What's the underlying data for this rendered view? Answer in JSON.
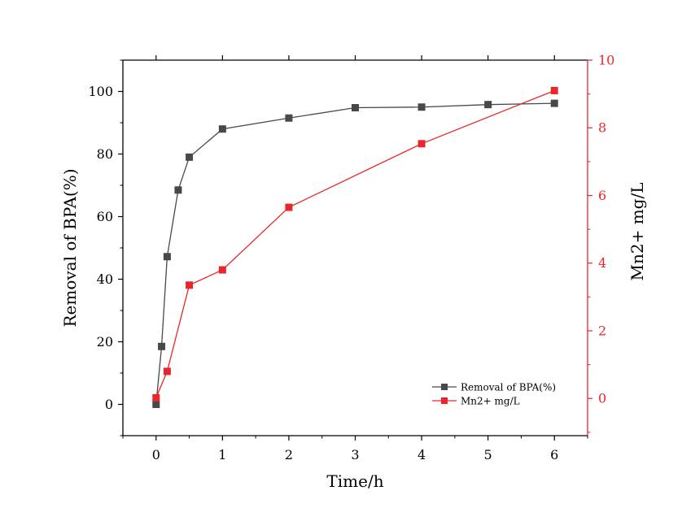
{
  "chart_data": {
    "type": "line",
    "x_axis": {
      "label": "Time/h",
      "range": [
        -0.5,
        6.5
      ],
      "ticks": [
        0,
        1,
        2,
        3,
        4,
        5,
        6
      ],
      "tick_labels": [
        "0",
        "1",
        "2",
        "3",
        "4",
        "5",
        "6"
      ]
    },
    "y_left": {
      "label": "Removal of BPA(%)",
      "range": [
        -10,
        110
      ],
      "ticks": [
        0,
        20,
        40,
        60,
        80,
        100
      ],
      "tick_labels": [
        "0",
        "20",
        "40",
        "60",
        "80",
        "100"
      ],
      "color": "#000000"
    },
    "y_right": {
      "label": "Mn2+ mg/L",
      "range": [
        -1.1,
        10
      ],
      "ticks": [
        0,
        2,
        4,
        6,
        8,
        10
      ],
      "tick_labels": [
        "0",
        "2",
        "4",
        "6",
        "8",
        "10"
      ],
      "color": "#e8262b"
    },
    "series": [
      {
        "name": "Removal of BPA(%)",
        "axis": "left",
        "color": "#484848",
        "marker": "square",
        "x": [
          0,
          0.083,
          0.167,
          0.333,
          0.5,
          1,
          2,
          3,
          4,
          5,
          6
        ],
        "y": [
          0,
          18.5,
          47.2,
          68.5,
          79,
          88,
          91.5,
          94.8,
          95,
          95.8,
          96.2
        ]
      },
      {
        "name": "Mn2+ mg/L",
        "axis": "right",
        "color": "#e8262b",
        "marker": "square",
        "x": [
          0,
          0.167,
          0.5,
          1,
          2,
          4,
          6
        ],
        "y": [
          0.02,
          0.8,
          3.35,
          3.8,
          5.65,
          7.53,
          9.1
        ]
      }
    ],
    "legend_position": "bottom-right",
    "grid": false
  }
}
